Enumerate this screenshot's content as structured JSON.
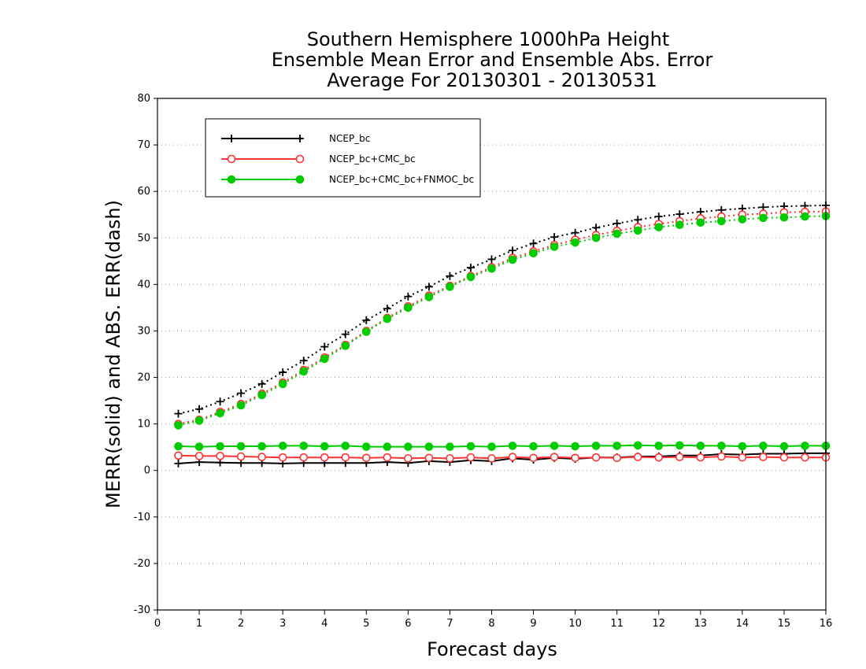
{
  "chart_data": {
    "type": "line",
    "title": [
      "Southern Hemisphere 1000hPa Height",
      "Ensemble Mean Error and Ensemble Abs. Error",
      "Average For 20130301 - 20130531"
    ],
    "xlabel": "Forecast days",
    "ylabel": "MERR(solid) and ABS. ERR(dash)",
    "xlim": [
      0,
      16
    ],
    "ylim": [
      -30,
      80
    ],
    "xticks": [
      0,
      1,
      2,
      3,
      4,
      5,
      6,
      7,
      8,
      9,
      10,
      11,
      12,
      13,
      14,
      15,
      16
    ],
    "yticks": [
      -30,
      -20,
      -10,
      0,
      10,
      20,
      30,
      40,
      50,
      60,
      70,
      80
    ],
    "grid": "horizontal dotted",
    "legend_position": "top-left",
    "x": [
      0.5,
      1,
      1.5,
      2,
      2.5,
      3,
      3.5,
      4,
      4.5,
      5,
      5.5,
      6,
      6.5,
      7,
      7.5,
      8,
      8.5,
      9,
      9.5,
      10,
      10.5,
      11,
      11.5,
      12,
      12.5,
      13,
      13.5,
      14,
      14.5,
      15,
      15.5,
      16
    ],
    "series": [
      {
        "name": "NCEP_bc",
        "color": "#000000",
        "marker": "plus",
        "merr": [
          1.5,
          1.8,
          1.7,
          1.6,
          1.6,
          1.5,
          1.6,
          1.6,
          1.6,
          1.6,
          1.8,
          1.6,
          2.0,
          1.8,
          2.2,
          2.0,
          2.6,
          2.3,
          2.7,
          2.5,
          2.8,
          2.8,
          3.0,
          3.0,
          3.2,
          3.2,
          3.5,
          3.4,
          3.6,
          3.6,
          3.7,
          3.7
        ],
        "abs_err": [
          12.2,
          13.2,
          14.8,
          16.6,
          18.6,
          21.1,
          23.6,
          26.6,
          29.3,
          32.3,
          34.8,
          37.4,
          39.5,
          41.8,
          43.6,
          45.4,
          47.3,
          48.8,
          50.2,
          51.1,
          52.2,
          53.1,
          53.9,
          54.6,
          55.1,
          55.6,
          56.0,
          56.3,
          56.6,
          56.8,
          56.9,
          57.0
        ]
      },
      {
        "name": "NCEP_bc+CMC_bc",
        "color": "#ff3333",
        "marker": "open-circle",
        "merr": [
          3.2,
          3.1,
          3.1,
          3.0,
          2.9,
          2.8,
          2.8,
          2.8,
          2.8,
          2.7,
          2.8,
          2.6,
          2.7,
          2.6,
          2.8,
          2.6,
          2.9,
          2.7,
          2.9,
          2.7,
          2.8,
          2.7,
          2.9,
          2.8,
          2.9,
          2.8,
          3.0,
          2.8,
          2.9,
          2.8,
          2.8,
          2.8
        ],
        "abs_err": [
          10.0,
          10.9,
          12.6,
          14.3,
          16.5,
          18.9,
          21.6,
          24.3,
          27.0,
          30.0,
          32.8,
          35.3,
          37.6,
          39.7,
          41.8,
          43.7,
          45.7,
          47.1,
          48.5,
          49.6,
          50.6,
          51.5,
          52.3,
          53.0,
          53.6,
          54.2,
          54.6,
          55.0,
          55.2,
          55.5,
          55.6,
          55.7
        ]
      },
      {
        "name": "NCEP_bc+CMC_bc+FNMOC_bc",
        "color": "#00cc00",
        "marker": "filled-circle",
        "merr": [
          5.2,
          5.1,
          5.2,
          5.2,
          5.2,
          5.3,
          5.3,
          5.2,
          5.3,
          5.1,
          5.1,
          5.1,
          5.1,
          5.1,
          5.2,
          5.1,
          5.3,
          5.2,
          5.3,
          5.2,
          5.3,
          5.3,
          5.4,
          5.3,
          5.4,
          5.3,
          5.3,
          5.2,
          5.3,
          5.2,
          5.3,
          5.3
        ],
        "abs_err": [
          9.7,
          10.7,
          12.3,
          14.0,
          16.2,
          18.6,
          21.3,
          24.0,
          26.8,
          29.8,
          32.6,
          35.0,
          37.3,
          39.5,
          41.6,
          43.4,
          45.3,
          46.7,
          48.1,
          49.0,
          50.0,
          50.9,
          51.6,
          52.3,
          52.8,
          53.3,
          53.6,
          54.0,
          54.3,
          54.4,
          54.6,
          54.7
        ]
      }
    ]
  }
}
